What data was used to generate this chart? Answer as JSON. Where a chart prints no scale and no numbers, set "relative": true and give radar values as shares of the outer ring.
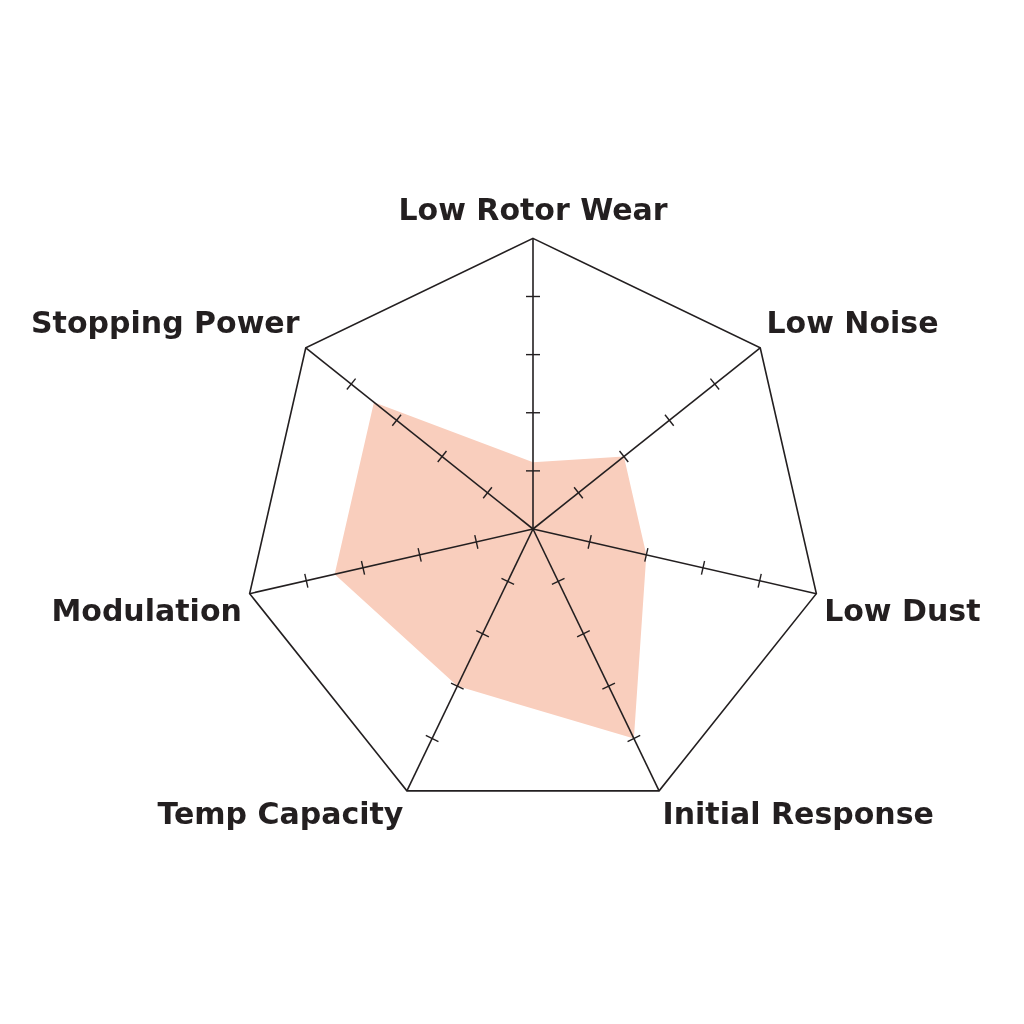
{
  "chart_data": {
    "type": "radar",
    "categories": [
      "Low Rotor Wear",
      "Low Noise",
      "Low Dust",
      "Initial Response",
      "Temp Capacity",
      "Modulation",
      "Stopping Power"
    ],
    "relative": true,
    "marker": "none",
    "legend": false,
    "series": [
      {
        "color": "#f9cebd",
        "values": [
          0.23,
          0.4,
          0.4,
          0.8,
          0.6,
          0.7,
          0.7
        ]
      }
    ]
  }
}
